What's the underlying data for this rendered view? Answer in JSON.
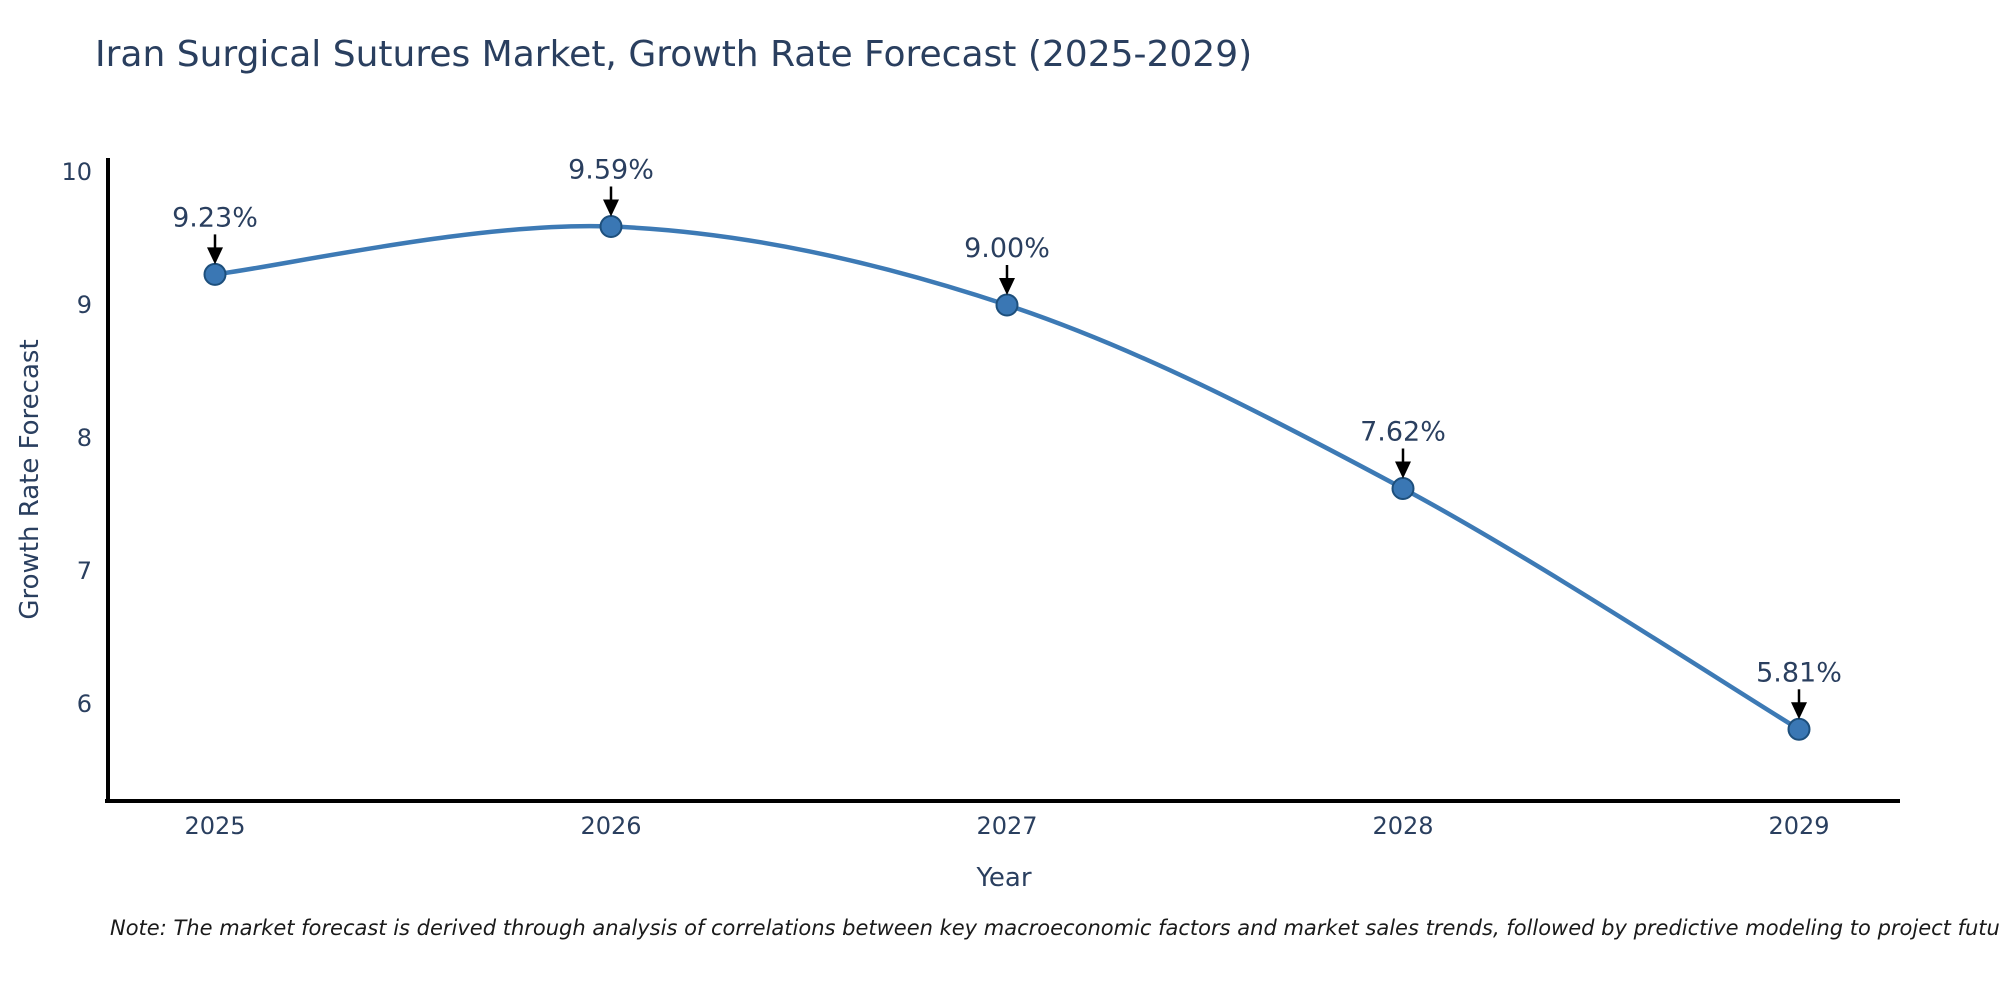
{
  "title": "Iran Surgical Sutures Market, Growth Rate Forecast (2025-2029)",
  "note": "Note: The market forecast is derived through analysis of correlations between key macroeconomic factors and market sales trends, followed by predictive modeling to project future sales",
  "chart_data": {
    "type": "line",
    "title": "Iran Surgical Sutures Market, Growth Rate Forecast (2025-2029)",
    "xlabel": "Year",
    "ylabel": "Growth Rate Forecast",
    "x": [
      2025,
      2026,
      2027,
      2028,
      2029
    ],
    "series": [
      {
        "name": "Growth Rate Forecast",
        "values": [
          9.23,
          9.59,
          9.0,
          7.62,
          5.81
        ],
        "point_labels": [
          "9.23%",
          "9.59%",
          "9.00%",
          "7.62%",
          "5.81%"
        ]
      }
    ],
    "yticks": [
      6,
      7,
      8,
      9,
      10
    ],
    "ylim": [
      5.28,
      10.1
    ],
    "grid": false,
    "legend_position": "none",
    "line_shape": "spline",
    "colors": {
      "line": "#3d7ab5",
      "marker_fill": "#3a77b4",
      "marker_edge": "#1d4f7c",
      "axis_line": "#000000",
      "text": "#2a3f5f",
      "annotation_text": "#2a3f5f",
      "annotation_arrow": "#000000",
      "note_text": "#1a1a1a"
    }
  }
}
